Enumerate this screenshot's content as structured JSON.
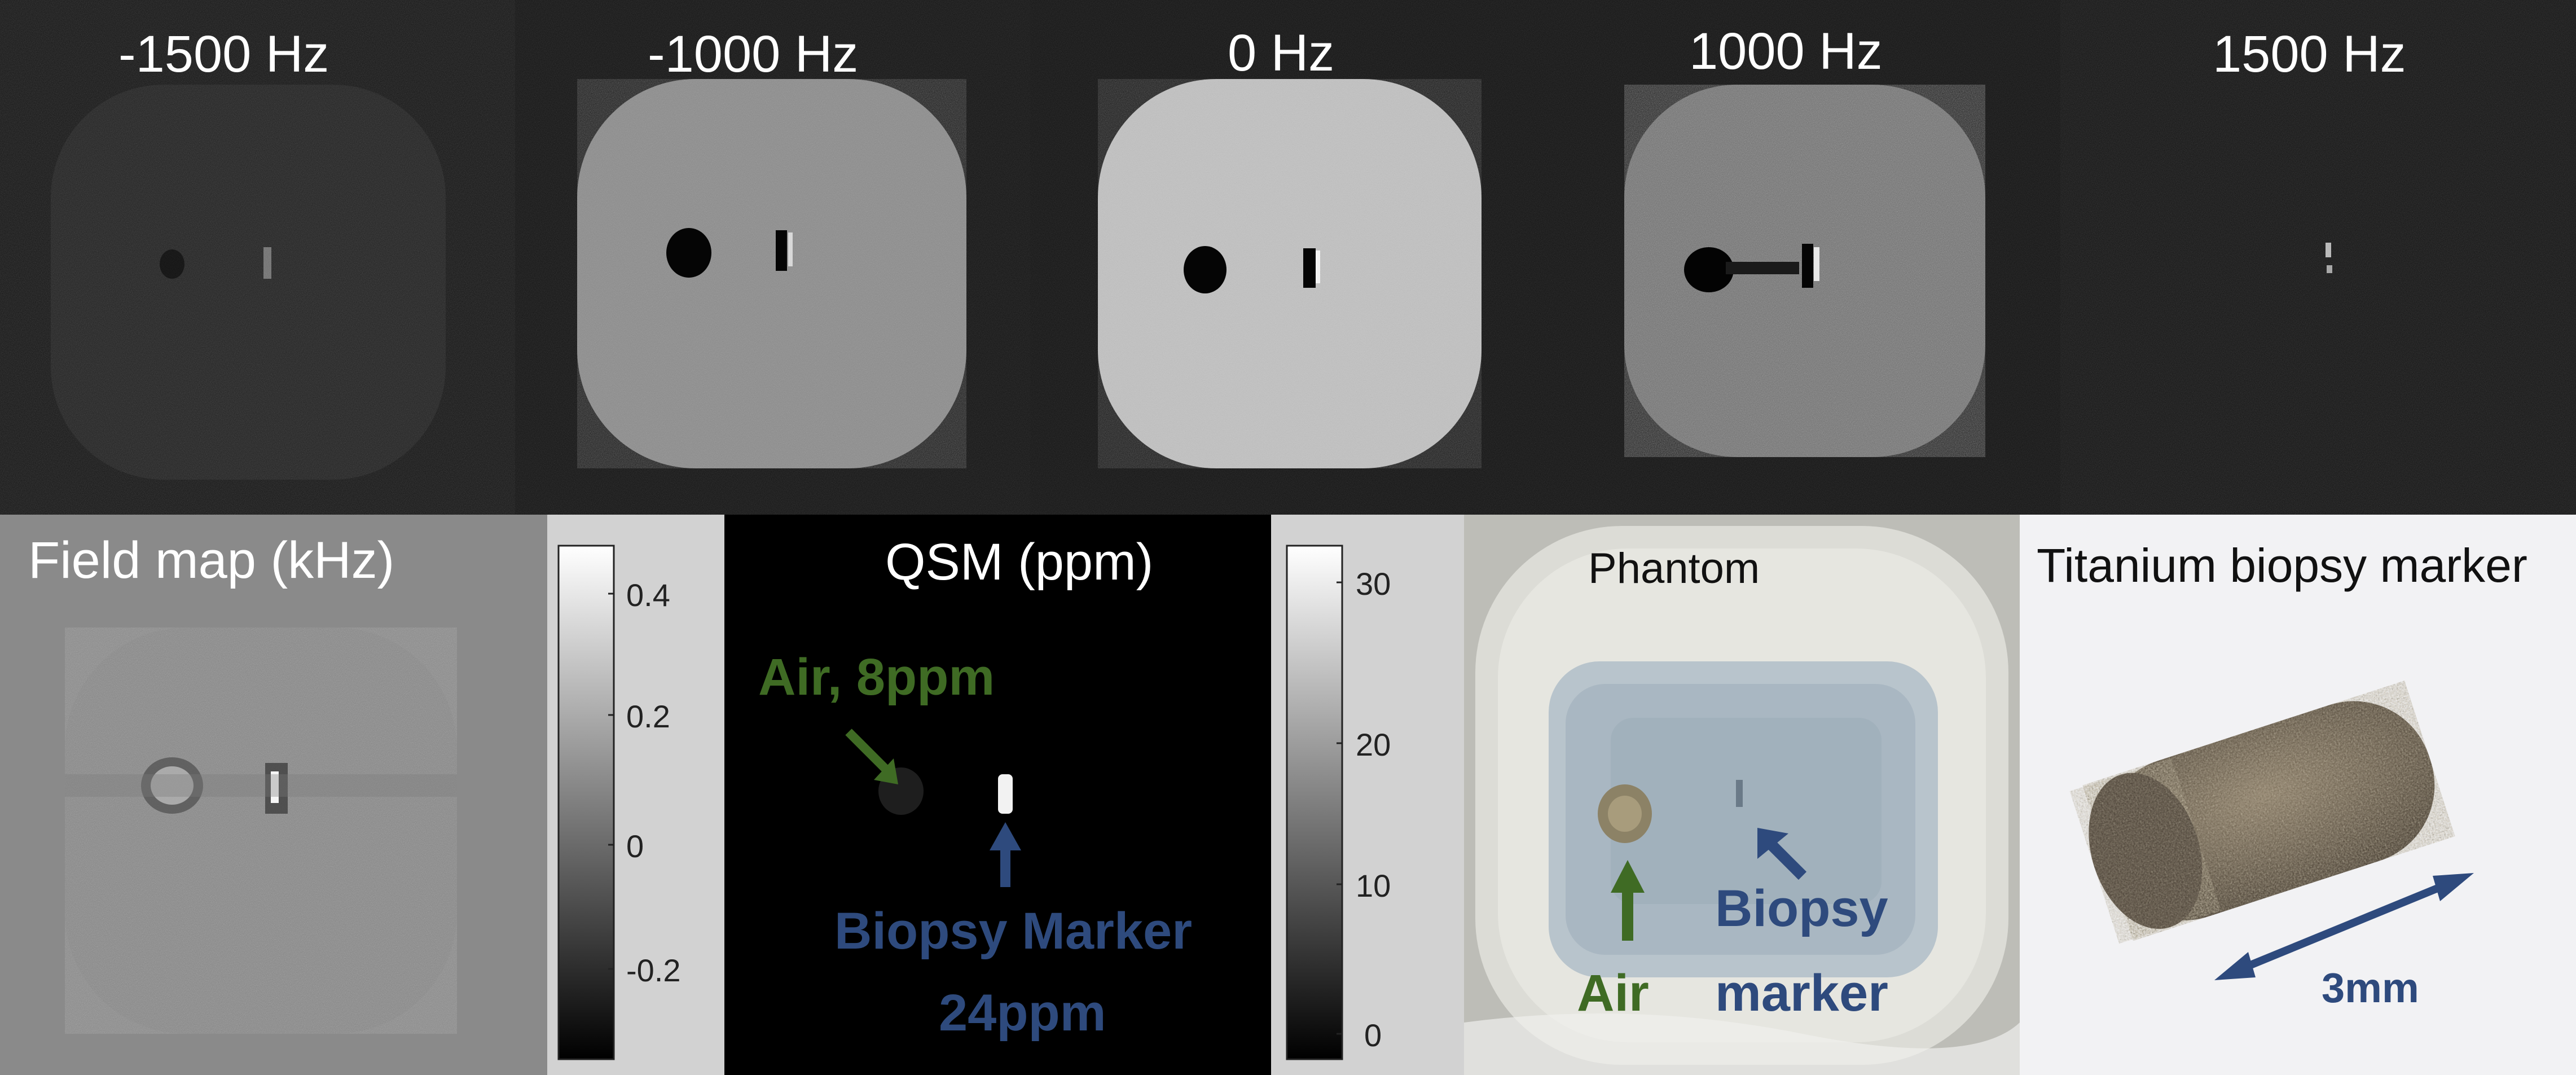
{
  "mri_row": {
    "panels": [
      {
        "label": "-1500 Hz"
      },
      {
        "label": "-1000 Hz"
      },
      {
        "label": "0 Hz"
      },
      {
        "label": "1000 Hz"
      },
      {
        "label": "1500 Hz"
      }
    ]
  },
  "field_map": {
    "title": "Field map (kHz)",
    "colorbar_ticks": [
      "0.4",
      "0.2",
      "0",
      "-0.2"
    ]
  },
  "qsm": {
    "title": "QSM (ppm)",
    "air_label": "Air, 8ppm",
    "marker_label_line1": "Biopsy Marker",
    "marker_label_line2": "24ppm",
    "colorbar_ticks": [
      "30",
      "20",
      "10",
      "0"
    ]
  },
  "phantom": {
    "title": "Phantom",
    "air_label": "Air",
    "marker_label_line1": "Biopsy",
    "marker_label_line2": "marker"
  },
  "titanium": {
    "title": "Titanium biopsy marker",
    "scale_label": "3mm"
  },
  "colors": {
    "green_annotation": "#3f6b24",
    "blue_annotation": "#2e4a7d"
  }
}
